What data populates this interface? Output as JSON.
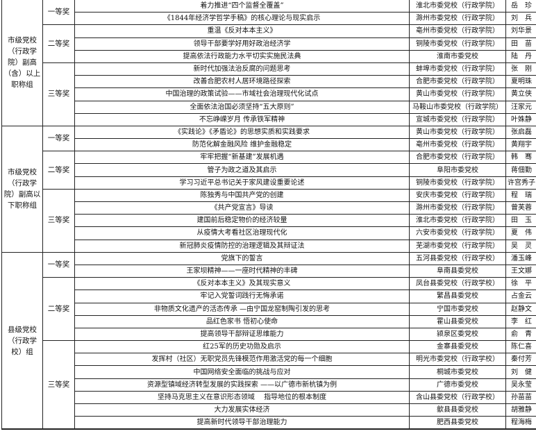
{
  "groups": [
    {
      "label": "市级党校（行政学院）副高（含）以上职称组",
      "awards": [
        {
          "label": "一等奖",
          "rows": [
            [
              "着力推进“四个监督全覆盖”",
              "淮北市委党校（行政学院）",
              "岳　珍"
            ],
            [
              "《1844年经济学哲学手稿》的核心理论与现实启示",
              "滁州市委党校（行政学院）",
              "刘　兵"
            ]
          ]
        },
        {
          "label": "二等奖",
          "rows": [
            [
              "重温《反对本本主义》",
              "亳州市委党校（行政学院）",
              "刘华景"
            ],
            [
              "领导干部要学好用好政治经济学",
              "铜陵市委党校（行政学院）",
              "田　苗"
            ],
            [
              "提高依法行政能力水平切实实施民法典",
              "淮南市委党校",
              "陆　丹"
            ]
          ]
        },
        {
          "label": "三等奖",
          "rows": [
            [
              "新时代加强法治反腐的问题思考",
              "蚌埠市委党校（行政学院）",
              "张　刚"
            ],
            [
              "改善合肥农村人居环境路径探索",
              "合肥市委党校（行政学院）",
              "夏明珠"
            ],
            [
              "中国治理的政策试验——市域社会治理现代化试点",
              "黄山市委党校（行政学院）",
              "黄立侠"
            ],
            [
              "全面依法治国必须坚持“五大原则”",
              "马鞍山市委党校（行政学院）",
              "汪家元"
            ],
            [
              "不忘峥嵘岁月  传承铁军精神",
              "宣城市委党校（行政学院）",
              "叶姝静"
            ]
          ]
        }
      ]
    },
    {
      "label": "市级党校（行政学院）副高以下职称组",
      "awards": [
        {
          "label": "一等奖",
          "rows": [
            [
              "《实践论》《矛盾论》的思想实质和实践要求",
              "黄山市委党校（行政学院）",
              "张启磊"
            ],
            [
              "防范化解金融风险  维护金融稳定",
              "亳州市委党校（行政学院）",
              "黄翔宇"
            ]
          ]
        },
        {
          "label": "二等奖",
          "rows": [
            [
              "牢牢把握“新基建”发展机遇",
              "合肥市委党校（行政学院）",
              "韩　骞"
            ],
            [
              "管子为政之道及其启示",
              "阜阳市委党校",
              "蒋佃勤"
            ],
            [
              "学习习近平总书记关于家风建设重要论述",
              "铜陵市委党校（行政学院）",
              "许宫秀子"
            ]
          ]
        },
        {
          "label": "三等奖",
          "rows": [
            [
              "陈独秀与中国共产党的创建",
              "安庆市委党校（行政学院）",
              "程　瑞"
            ],
            [
              "《共产党宣言》导读",
              "滁州市委党校（行政学院）",
              "曾芙蓉"
            ],
            [
              "建国前后稳定物价的经济较量",
              "淮北市委党校（行政学院）",
              "田　玉"
            ],
            [
              "从疫情大考看社区治理现代化",
              "六安市委党校（行政学院）",
              "夏　伟"
            ],
            [
              "新冠肺炎疫情防控的治理逻辑及其辩证法",
              "芜湖市委党校（行政学院）",
              "吴　灵"
            ]
          ]
        }
      ]
    },
    {
      "label": "县级党校（行政学校）组",
      "awards": [
        {
          "label": "一等奖",
          "rows": [
            [
              "党旗下的誓言",
              "五河县委党校（行政学校）",
              "潘玉峰"
            ],
            [
              "王家坝精神——一座时代精神的丰碑",
              "阜南县委党校",
              "王文娜"
            ]
          ]
        },
        {
          "label": "二等奖",
          "rows": [
            [
              "《反对本本主义》及其现实意义",
              "凤台县委党校（行政学校）",
              "徐　平"
            ],
            [
              "牢记入党誓词践行无悔承诺",
              "繁昌县委党校",
              "占金云"
            ],
            [
              "非物质文化遗产的活态传承 —由宁国龙窑制陶引发的思考",
              "宁国市委党校",
              "赵静文"
            ],
            [
              "品红色家书  悟初心使命",
              "霍山县委党校",
              "李　红"
            ],
            [
              "提高领导干部辩证思维能力",
              "颍泉区委党校",
              "俞　青"
            ]
          ]
        },
        {
          "label": "三等奖",
          "rows": [
            [
              "红25军的历史功勋及启示",
              "金寨县委党校",
              "陈仁喜"
            ],
            [
              "发挥村（社区）无职党员先锋模范作用激活党的每一个细胞",
              "明光市委党校（行政学校）",
              "秦付芳"
            ],
            [
              "中国网络安全面临的挑战与应对",
              "桐城市委党校",
              "刘　健"
            ],
            [
              "资源型镇域经济转型发展的实践探索 ——以广德市新杭镇为例",
              "广德市委党校",
              "吴永莹"
            ],
            [
              "坚持马克思主义在意识形态领域　 指导地位的根本制度",
              "含山县委党校（行政学校）",
              "孙苗苗"
            ],
            [
              "大力发展实体经济",
              "歙县县委党校",
              "胡雅静"
            ],
            [
              "提高新时代领导干部治理能力",
              "肥西县委党校",
              "程海梅"
            ]
          ]
        }
      ]
    }
  ]
}
